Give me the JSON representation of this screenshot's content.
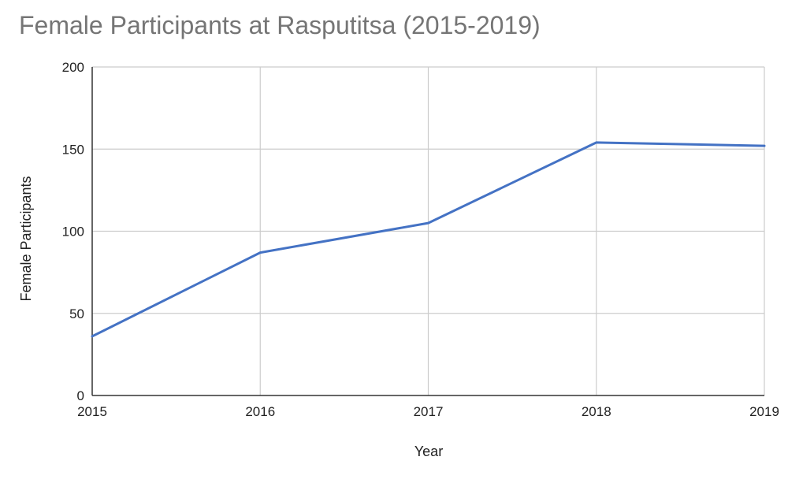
{
  "chart_data": {
    "type": "line",
    "title": "Female Participants at Rasputitsa (2015-2019)",
    "xlabel": "Year",
    "ylabel": "Female Participants",
    "categories": [
      "2015",
      "2016",
      "2017",
      "2018",
      "2019"
    ],
    "series": [
      {
        "values": [
          36,
          87,
          105,
          154,
          152
        ],
        "color": "#4472c4"
      }
    ],
    "ylim": [
      0,
      200
    ],
    "yticks": [
      "0",
      "50",
      "100",
      "150",
      "200"
    ],
    "grid": true,
    "legend": "none"
  }
}
